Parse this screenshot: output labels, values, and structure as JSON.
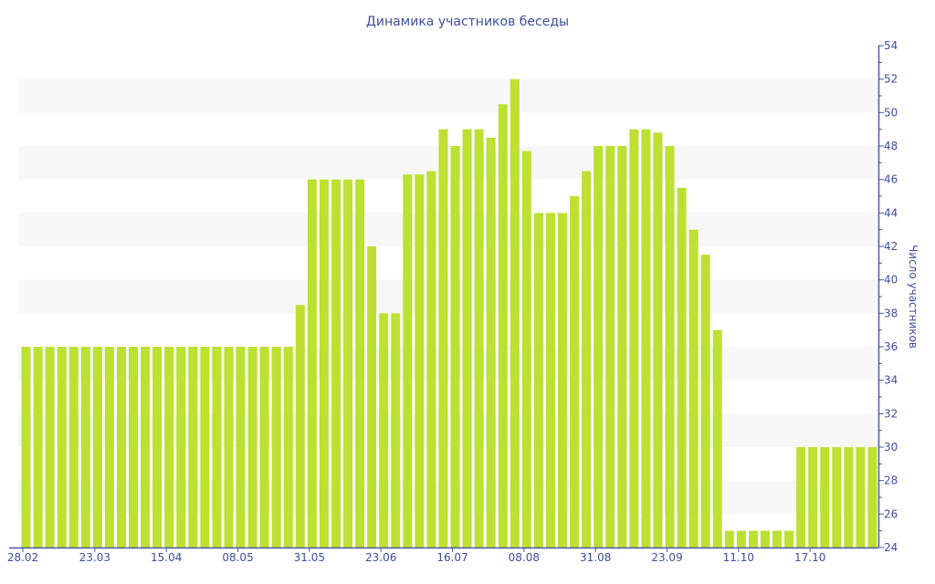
{
  "chart_data": {
    "type": "bar",
    "title": "Динамика участников беседы",
    "xlabel": "",
    "ylabel": "Число участников",
    "ylim": [
      24,
      54
    ],
    "yticks": [
      24,
      26,
      28,
      30,
      32,
      34,
      36,
      38,
      40,
      42,
      44,
      46,
      48,
      50,
      52,
      54
    ],
    "y_axis_side": "right",
    "grid": "alternating horizontal bands",
    "bar_color": "#bde031",
    "axis_color": "#4b5aa0",
    "band_color": "#f7f7f7",
    "values": [
      36,
      36,
      36,
      36,
      36,
      36,
      36,
      36,
      36,
      36,
      36,
      36,
      36,
      36,
      36,
      36,
      36,
      36,
      36,
      36,
      36,
      36,
      36,
      38.5,
      46,
      46,
      46,
      46,
      46,
      42,
      38,
      38,
      46.3,
      46.3,
      46.5,
      49,
      48,
      49,
      49,
      48.5,
      50.5,
      52,
      47.7,
      44,
      44,
      44,
      45,
      46.5,
      48,
      48,
      48,
      49,
      49,
      48.8,
      48,
      45.5,
      43,
      41.5,
      37,
      25,
      25,
      25,
      25,
      25,
      25,
      30,
      30,
      30,
      30,
      30,
      30,
      30
    ],
    "x_tick_labels": [
      {
        "index": 0,
        "label": "28.02"
      },
      {
        "index": 6,
        "label": "23.03"
      },
      {
        "index": 12,
        "label": "15.04"
      },
      {
        "index": 18,
        "label": "08.05"
      },
      {
        "index": 24,
        "label": "31.05"
      },
      {
        "index": 30,
        "label": "23.06"
      },
      {
        "index": 36,
        "label": "16.07"
      },
      {
        "index": 42,
        "label": "08.08"
      },
      {
        "index": 48,
        "label": "31.08"
      },
      {
        "index": 54,
        "label": "23.09"
      },
      {
        "index": 60,
        "label": "11.10"
      },
      {
        "index": 66,
        "label": "17.10"
      }
    ]
  }
}
